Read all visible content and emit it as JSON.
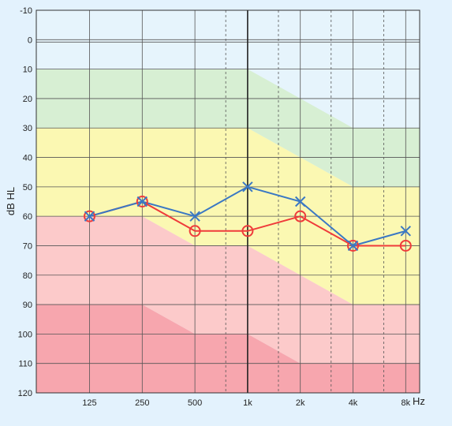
{
  "chart_data": {
    "type": "line",
    "ylabel": "dB HL",
    "x_unit": "Hz",
    "x_categories": [
      "125",
      "250",
      "500",
      "1k",
      "2k",
      "4k",
      "8k"
    ],
    "x_values_hz": [
      125,
      250,
      500,
      1000,
      2000,
      4000,
      8000
    ],
    "intermediate_frequencies_hz": [
      750,
      1500,
      3000,
      6000
    ],
    "y_tick_labels": [
      "-10",
      "0",
      "10",
      "20",
      "30",
      "40",
      "50",
      "60",
      "70",
      "80",
      "90",
      "100",
      "110",
      "120"
    ],
    "ylim": [
      -10,
      120
    ],
    "y_inverted": true,
    "grid": true,
    "series": [
      {
        "color": "#ef3b3b",
        "marker": "circle",
        "x": [
          125,
          250,
          500,
          1000,
          2000,
          4000,
          8000
        ],
        "values": [
          60,
          55,
          65,
          65,
          60,
          70,
          70
        ]
      },
      {
        "color": "#3a78c4",
        "marker": "cross",
        "x": [
          125,
          250,
          500,
          1000,
          2000,
          4000,
          8000
        ],
        "values": [
          60,
          55,
          60,
          50,
          55,
          70,
          65
        ]
      }
    ],
    "background_zones": [
      {
        "color": "#d7efd3",
        "upper_db": [
          10,
          10,
          10,
          10,
          20,
          30,
          30
        ],
        "lower_db": [
          30,
          30,
          30,
          30,
          40,
          50,
          50
        ]
      },
      {
        "color": "#fbf8b2",
        "upper_db": [
          30,
          30,
          30,
          30,
          40,
          50,
          50
        ],
        "lower_db": [
          60,
          60,
          70,
          70,
          80,
          90,
          90
        ]
      },
      {
        "color": "#fccaca",
        "upper_db": [
          60,
          60,
          70,
          70,
          80,
          90,
          90
        ],
        "lower_db": [
          90,
          90,
          100,
          100,
          110,
          110,
          110
        ]
      },
      {
        "color": "#f7a6ae",
        "upper_db": [
          90,
          90,
          100,
          100,
          110,
          110,
          110
        ],
        "lower_db": [
          120,
          120,
          120,
          120,
          120,
          120,
          120
        ]
      }
    ]
  }
}
